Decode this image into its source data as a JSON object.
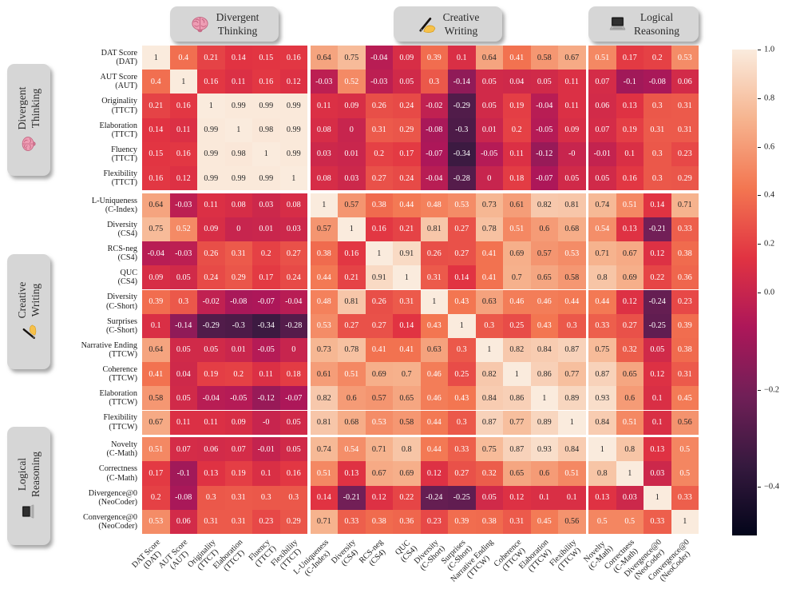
{
  "figure": {
    "top_group_boxes": [
      {
        "line1": "Divergent",
        "line2": "Thinking",
        "icon": "brain-icon"
      },
      {
        "line1": "Creative",
        "line2": "Writing",
        "icon": "writing-hand-icon"
      },
      {
        "line1": "Logical",
        "line2": "Reasoning",
        "icon": "laptop-icon"
      }
    ],
    "side_group_boxes": [
      {
        "line1": "Divergent",
        "line2": "Thinking",
        "icon": "brain-icon"
      },
      {
        "line1": "Creative",
        "line2": "Writing",
        "icon": "writing-hand-icon"
      },
      {
        "line1": "Logical",
        "line2": "Reasoning",
        "icon": "laptop-icon"
      }
    ]
  },
  "chart_data": {
    "type": "heatmap",
    "colormap": "rocket",
    "norm": {
      "vmin": -0.5,
      "center": 0,
      "vmax": 1.0
    },
    "legend_position": "right-colorbar",
    "colorbar_ticks": [
      "1.0",
      "0.8",
      "0.6",
      "0.4",
      "0.2",
      "0.0",
      "−0.2",
      "−0.4"
    ],
    "groups": [
      {
        "name": "Divergent Thinking",
        "icon": "brain-icon",
        "start": 0,
        "end": 5
      },
      {
        "name": "Creative Writing",
        "icon": "writing-hand-icon",
        "start": 6,
        "end": 15
      },
      {
        "name": "Logical Reasoning",
        "icon": "laptop-icon",
        "start": 16,
        "end": 19
      }
    ],
    "labels": [
      [
        "DAT Score",
        "(DAT)"
      ],
      [
        "AUT Score",
        "(AUT)"
      ],
      [
        "Originality",
        "(TTCT)"
      ],
      [
        "Elaboration",
        "(TTCT)"
      ],
      [
        "Fluency",
        "(TTCT)"
      ],
      [
        "Flexibility",
        "(TTCT)"
      ],
      [
        "L-Uniqueness",
        "(C-Index)"
      ],
      [
        "Diversity",
        "(CS4)"
      ],
      [
        "RCS-neg",
        "(CS4)"
      ],
      [
        "QUC",
        "(CS4)"
      ],
      [
        "Diversity",
        "(C-Short)"
      ],
      [
        "Surprises",
        "(C-Short)"
      ],
      [
        "Narrative Ending",
        "(TTCW)"
      ],
      [
        "Coherence",
        "(TTCW)"
      ],
      [
        "Elaboration",
        "(TTCW)"
      ],
      [
        "Flexibility",
        "(TTCW)"
      ],
      [
        "Novelty",
        "(C-Math)"
      ],
      [
        "Correctness",
        "(C-Math)"
      ],
      [
        "Divergence@0",
        "(NeoCoder)"
      ],
      [
        "Convergence@0",
        "(NeoCoder)"
      ]
    ],
    "matrix": [
      [
        "1",
        "0.4",
        "0.21",
        "0.14",
        "0.15",
        "0.16",
        "0.64",
        "0.75",
        "-0.04",
        "0.09",
        "0.39",
        "0.1",
        "0.64",
        "0.41",
        "0.58",
        "0.67",
        "0.51",
        "0.17",
        "0.2",
        "0.53"
      ],
      [
        "0.4",
        "1",
        "0.16",
        "0.11",
        "0.16",
        "0.12",
        "-0.03",
        "0.52",
        "-0.03",
        "0.05",
        "0.3",
        "-0.14",
        "0.05",
        "0.04",
        "0.05",
        "0.11",
        "0.07",
        "-0.1",
        "-0.08",
        "0.06"
      ],
      [
        "0.21",
        "0.16",
        "1",
        "0.99",
        "0.99",
        "0.99",
        "0.11",
        "0.09",
        "0.26",
        "0.24",
        "-0.02",
        "-0.29",
        "0.05",
        "0.19",
        "-0.04",
        "0.11",
        "0.06",
        "0.13",
        "0.3",
        "0.31"
      ],
      [
        "0.14",
        "0.11",
        "0.99",
        "1",
        "0.98",
        "0.99",
        "0.08",
        "0",
        "0.31",
        "0.29",
        "-0.08",
        "-0.3",
        "0.01",
        "0.2",
        "-0.05",
        "0.09",
        "0.07",
        "0.19",
        "0.31",
        "0.31"
      ],
      [
        "0.15",
        "0.16",
        "0.99",
        "0.98",
        "1",
        "0.99",
        "0.03",
        "0.01",
        "0.2",
        "0.17",
        "-0.07",
        "-0.34",
        "-0.05",
        "0.11",
        "-0.12",
        "-0",
        "-0.01",
        "0.1",
        "0.3",
        "0.23"
      ],
      [
        "0.16",
        "0.12",
        "0.99",
        "0.99",
        "0.99",
        "1",
        "0.08",
        "0.03",
        "0.27",
        "0.24",
        "-0.04",
        "-0.28",
        "0",
        "0.18",
        "-0.07",
        "0.05",
        "0.05",
        "0.16",
        "0.3",
        "0.29"
      ],
      [
        "0.64",
        "-0.03",
        "0.11",
        "0.08",
        "0.03",
        "0.08",
        "1",
        "0.57",
        "0.38",
        "0.44",
        "0.48",
        "0.53",
        "0.73",
        "0.61",
        "0.82",
        "0.81",
        "0.74",
        "0.51",
        "0.14",
        "0.71"
      ],
      [
        "0.75",
        "0.52",
        "0.09",
        "0",
        "0.01",
        "0.03",
        "0.57",
        "1",
        "0.16",
        "0.21",
        "0.81",
        "0.27",
        "0.78",
        "0.51",
        "0.6",
        "0.68",
        "0.54",
        "0.13",
        "-0.21",
        "0.33"
      ],
      [
        "-0.04",
        "-0.03",
        "0.26",
        "0.31",
        "0.2",
        "0.27",
        "0.38",
        "0.16",
        "1",
        "0.91",
        "0.26",
        "0.27",
        "0.41",
        "0.69",
        "0.57",
        "0.53",
        "0.71",
        "0.67",
        "0.12",
        "0.38"
      ],
      [
        "0.09",
        "0.05",
        "0.24",
        "0.29",
        "0.17",
        "0.24",
        "0.44",
        "0.21",
        "0.91",
        "1",
        "0.31",
        "0.14",
        "0.41",
        "0.7",
        "0.65",
        "0.58",
        "0.8",
        "0.69",
        "0.22",
        "0.36"
      ],
      [
        "0.39",
        "0.3",
        "-0.02",
        "-0.08",
        "-0.07",
        "-0.04",
        "0.48",
        "0.81",
        "0.26",
        "0.31",
        "1",
        "0.43",
        "0.63",
        "0.46",
        "0.46",
        "0.44",
        "0.44",
        "0.12",
        "-0.24",
        "0.23"
      ],
      [
        "0.1",
        "-0.14",
        "-0.29",
        "-0.3",
        "-0.34",
        "-0.28",
        "0.53",
        "0.27",
        "0.27",
        "0.14",
        "0.43",
        "1",
        "0.3",
        "0.25",
        "0.43",
        "0.3",
        "0.33",
        "0.27",
        "-0.25",
        "0.39"
      ],
      [
        "0.64",
        "0.05",
        "0.05",
        "0.01",
        "-0.05",
        "0",
        "0.73",
        "0.78",
        "0.41",
        "0.41",
        "0.63",
        "0.3",
        "1",
        "0.82",
        "0.84",
        "0.87",
        "0.75",
        "0.32",
        "0.05",
        "0.38"
      ],
      [
        "0.41",
        "0.04",
        "0.19",
        "0.2",
        "0.11",
        "0.18",
        "0.61",
        "0.51",
        "0.69",
        "0.7",
        "0.46",
        "0.25",
        "0.82",
        "1",
        "0.86",
        "0.77",
        "0.87",
        "0.65",
        "0.12",
        "0.31"
      ],
      [
        "0.58",
        "0.05",
        "-0.04",
        "-0.05",
        "-0.12",
        "-0.07",
        "0.82",
        "0.6",
        "0.57",
        "0.65",
        "0.46",
        "0.43",
        "0.84",
        "0.86",
        "1",
        "0.89",
        "0.93",
        "0.6",
        "0.1",
        "0.45"
      ],
      [
        "0.67",
        "0.11",
        "0.11",
        "0.09",
        "-0",
        "0.05",
        "0.81",
        "0.68",
        "0.53",
        "0.58",
        "0.44",
        "0.3",
        "0.87",
        "0.77",
        "0.89",
        "1",
        "0.84",
        "0.51",
        "0.1",
        "0.56"
      ],
      [
        "0.51",
        "0.07",
        "0.06",
        "0.07",
        "-0.01",
        "0.05",
        "0.74",
        "0.54",
        "0.71",
        "0.8",
        "0.44",
        "0.33",
        "0.75",
        "0.87",
        "0.93",
        "0.84",
        "1",
        "0.8",
        "0.13",
        "0.5"
      ],
      [
        "0.17",
        "-0.1",
        "0.13",
        "0.19",
        "0.1",
        "0.16",
        "0.51",
        "0.13",
        "0.67",
        "0.69",
        "0.12",
        "0.27",
        "0.32",
        "0.65",
        "0.6",
        "0.51",
        "0.8",
        "1",
        "0.03",
        "0.5"
      ],
      [
        "0.2",
        "-0.08",
        "0.3",
        "0.31",
        "0.3",
        "0.3",
        "0.14",
        "-0.21",
        "0.12",
        "0.22",
        "-0.24",
        "-0.25",
        "0.05",
        "0.12",
        "0.1",
        "0.1",
        "0.13",
        "0.03",
        "1",
        "0.33"
      ],
      [
        "0.53",
        "0.06",
        "0.31",
        "0.31",
        "0.23",
        "0.29",
        "0.71",
        "0.33",
        "0.38",
        "0.36",
        "0.23",
        "0.39",
        "0.38",
        "0.31",
        "0.45",
        "0.56",
        "0.5",
        "0.5",
        "0.33",
        "1"
      ]
    ]
  }
}
